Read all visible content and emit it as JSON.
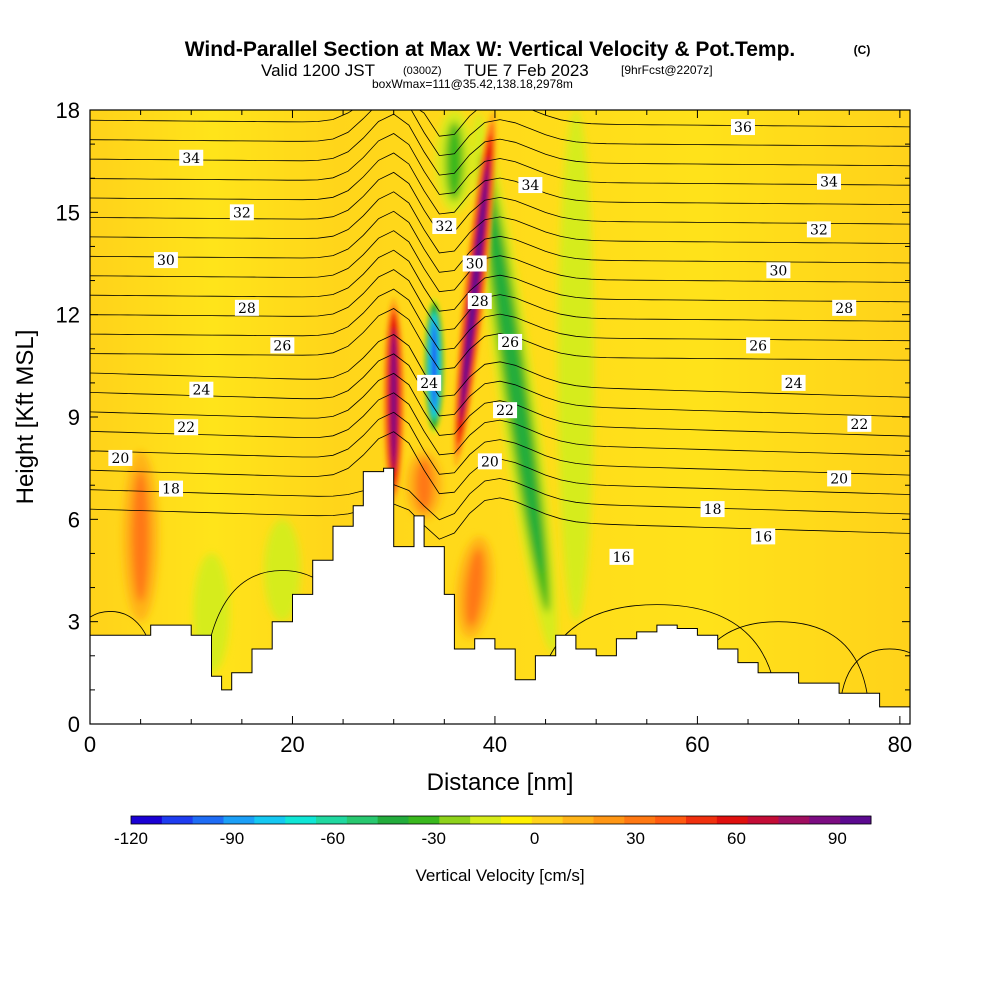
{
  "title": {
    "main": "Wind-Parallel Section at Max W: Vertical Velocity & Pot.Temp.",
    "main_unit": "(C)",
    "valid_a": "Valid 1200 JST",
    "valid_b": "(0300Z)",
    "valid_c": "TUE 7 Feb 2023",
    "valid_d": "[9hrFcst@2207z]",
    "box": "boxWmax=111@35.42,138.18,2978m"
  },
  "chart_data": {
    "type": "heatmap",
    "title": "Wind-Parallel Section at Max W: Vertical Velocity & Pot.Temp.",
    "xlabel": "Distance [nm]",
    "ylabel": "Height [Kft MSL]",
    "xlim": [
      0,
      81
    ],
    "ylim": [
      0,
      18
    ],
    "x_ticks": [
      0,
      20,
      40,
      60,
      80
    ],
    "y_ticks": [
      0,
      3,
      6,
      9,
      12,
      15,
      18
    ],
    "field": "Vertical Velocity [cm/s]",
    "colorbar": {
      "label": "Vertical Velocity [cm/s]",
      "range": [
        -120,
        100
      ],
      "ticks": [
        -120,
        -90,
        -60,
        -30,
        0,
        30,
        60,
        90
      ],
      "colors": [
        "#1a00d4",
        "#1e3cf0",
        "#1e6cf5",
        "#1b9ff7",
        "#15c8f2",
        "#10e6d6",
        "#20d8a0",
        "#28c870",
        "#23ac3c",
        "#3ab81e",
        "#8ed21b",
        "#d6ec1a",
        "#fff000",
        "#ffd21a",
        "#ffb418",
        "#ff9614",
        "#ff7812",
        "#ff5a10",
        "#f0300e",
        "#e0100e",
        "#c40c36",
        "#a00e60",
        "#7c0c82",
        "#5c0a90"
      ]
    },
    "max_w": {
      "value_cm_s": 111,
      "lat": 35.42,
      "lon": 138.18,
      "height_m": 2978,
      "distance_nm": 37.5
    },
    "terrain_kft": {
      "x": [
        0,
        6,
        10,
        12,
        13,
        14,
        16,
        18,
        20,
        22,
        24,
        26,
        27,
        29,
        30,
        32,
        33,
        35,
        36,
        38,
        40,
        42,
        44,
        46,
        48,
        50,
        52,
        54,
        56,
        58,
        60,
        62,
        64,
        66,
        70,
        74,
        78,
        81
      ],
      "height": [
        2.6,
        2.9,
        2.6,
        1.4,
        1.0,
        1.5,
        2.2,
        3.0,
        3.8,
        4.8,
        5.8,
        6.4,
        7.4,
        7.5,
        5.2,
        6.1,
        5.2,
        3.8,
        2.2,
        2.5,
        2.2,
        1.3,
        2.0,
        2.6,
        2.2,
        2.0,
        2.5,
        2.7,
        2.9,
        2.8,
        2.6,
        2.2,
        1.8,
        1.5,
        1.2,
        0.9,
        0.5,
        0.4
      ]
    },
    "vertical_velocity_features": [
      {
        "x": 30,
        "z": [
          6.5,
          12.5
        ],
        "w": 100,
        "kind": "updraft"
      },
      {
        "x": 34,
        "z": [
          8.5,
          12.5
        ],
        "w": -115,
        "kind": "downdraft"
      },
      {
        "x": 38,
        "z": [
          7.5,
          18
        ],
        "w": 111,
        "kind": "updraft"
      },
      {
        "x": 42,
        "z": [
          2,
          18
        ],
        "w": -45,
        "kind": "downdraft"
      },
      {
        "x": 36,
        "z": [
          15,
          18
        ],
        "w": -40,
        "kind": "downdraft"
      },
      {
        "x": 33,
        "z": [
          6,
          8
        ],
        "w": 35,
        "kind": "updraft"
      },
      {
        "x": 5,
        "z": [
          3,
          8
        ],
        "w": 30,
        "kind": "updraft"
      },
      {
        "x": 12,
        "z": [
          1.5,
          5
        ],
        "w": -20,
        "kind": "downdraft"
      },
      {
        "x": 19,
        "z": [
          3,
          6
        ],
        "w": -15,
        "kind": "downdraft"
      },
      {
        "x": 38,
        "z": [
          2.5,
          5.5
        ],
        "w": 40,
        "kind": "updraft"
      },
      {
        "x": 48,
        "z": [
          3,
          18
        ],
        "w": -10,
        "kind": "downdraft"
      }
    ],
    "potential_temperature": {
      "unit": "C",
      "contour_interval": 1,
      "labels": [
        {
          "value": "34",
          "x": 2,
          "z": 16.6
        },
        {
          "value": "32",
          "x": 3,
          "z": 15.0
        },
        {
          "value": "30",
          "x": 1.5,
          "z": 13.6
        },
        {
          "value": "28",
          "x": 3.1,
          "z": 12.2
        },
        {
          "value": "26",
          "x": 3.8,
          "z": 11.1
        },
        {
          "value": "24",
          "x": 2.2,
          "z": 9.8
        },
        {
          "value": "22",
          "x": 1.9,
          "z": 8.7
        },
        {
          "value": "20",
          "x": 0.6,
          "z": 7.8
        },
        {
          "value": "18",
          "x": 1.6,
          "z": 6.9
        },
        {
          "value": "32",
          "x": 7.0,
          "z": 14.6
        },
        {
          "value": "30",
          "x": 7.6,
          "z": 13.5
        },
        {
          "value": "28",
          "x": 7.7,
          "z": 12.4
        },
        {
          "value": "24",
          "x": 6.7,
          "z": 10.0
        },
        {
          "value": "34",
          "x": 8.7,
          "z": 15.8
        },
        {
          "value": "26",
          "x": 8.3,
          "z": 11.2
        },
        {
          "value": "22",
          "x": 8.2,
          "z": 9.2
        },
        {
          "value": "20",
          "x": 7.9,
          "z": 7.7
        },
        {
          "value": "16",
          "x": 10.5,
          "z": 4.9
        },
        {
          "value": "36",
          "x": 12.9,
          "z": 17.5
        },
        {
          "value": "34",
          "x": 14.6,
          "z": 15.9
        },
        {
          "value": "32",
          "x": 14.4,
          "z": 14.5
        },
        {
          "value": "30",
          "x": 13.6,
          "z": 13.3
        },
        {
          "value": "28",
          "x": 14.9,
          "z": 12.2
        },
        {
          "value": "26",
          "x": 13.2,
          "z": 11.1
        },
        {
          "value": "24",
          "x": 13.9,
          "z": 10.0
        },
        {
          "value": "22",
          "x": 15.2,
          "z": 8.8
        },
        {
          "value": "20",
          "x": 14.8,
          "z": 7.2
        },
        {
          "value": "18",
          "x": 12.3,
          "z": 6.3
        },
        {
          "value": "16",
          "x": 13.3,
          "z": 5.5
        }
      ]
    }
  }
}
